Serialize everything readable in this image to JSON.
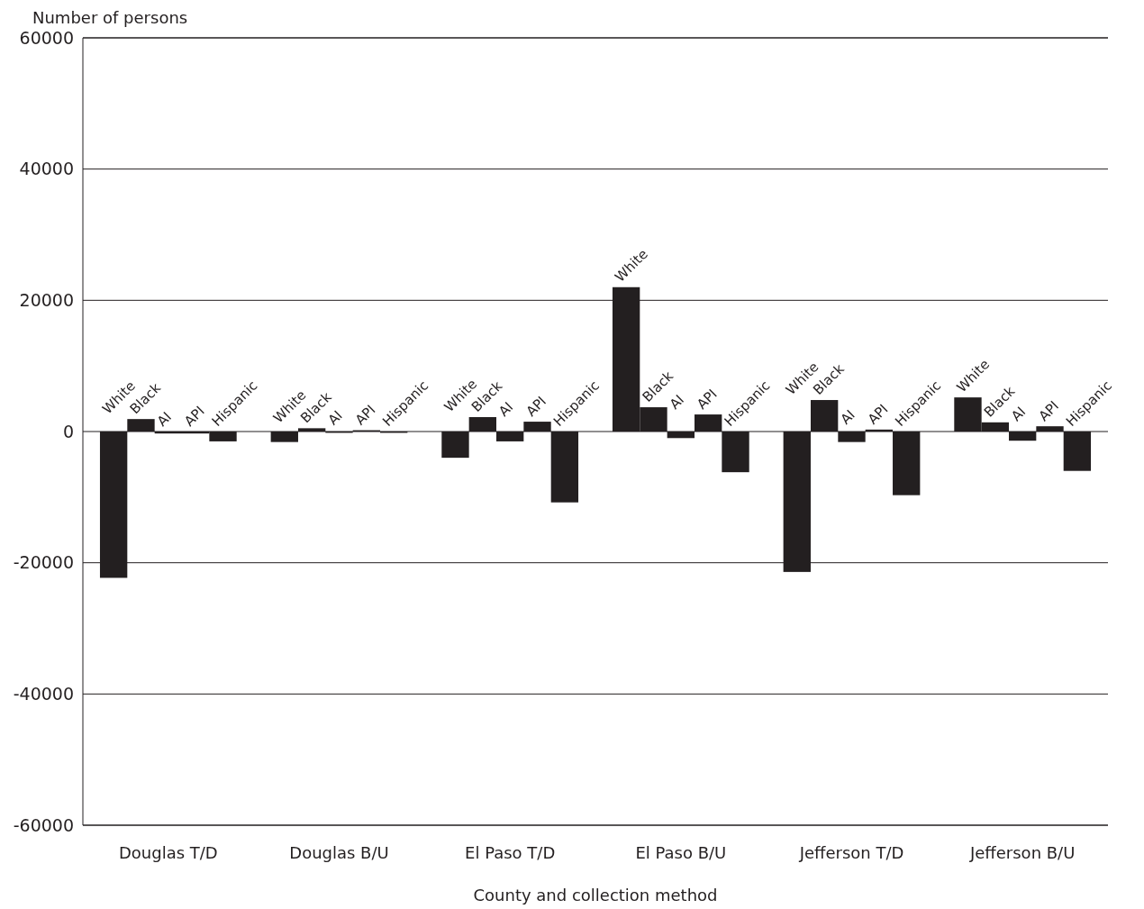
{
  "chart_data": {
    "type": "bar",
    "xlabel": "County and collection method",
    "ylabel": "Number of persons",
    "categories": [
      "Douglas T/D",
      "Douglas B/U",
      "El Paso T/D",
      "El Paso B/U",
      "Jefferson T/D",
      "Jefferson B/U"
    ],
    "series": [
      {
        "name": "White",
        "color": "#231f20",
        "values": [
          -22300,
          -1600,
          -4000,
          22000,
          -21400,
          5200
        ]
      },
      {
        "name": "Black",
        "color": "#231f20",
        "values": [
          1900,
          500,
          2200,
          3700,
          4800,
          1400
        ]
      },
      {
        "name": "AI",
        "color": "#231f20",
        "values": [
          -300,
          -200,
          -1500,
          -1000,
          -1600,
          -1400
        ]
      },
      {
        "name": "API",
        "color": "#231f20",
        "values": [
          -300,
          200,
          1500,
          2600,
          300,
          800
        ]
      },
      {
        "name": "Hispanic",
        "color": "#231f20",
        "values": [
          -1500,
          -200,
          -10800,
          -6200,
          -9700,
          -6000
        ]
      }
    ],
    "ylim": [
      -60000,
      60000
    ],
    "yticks": [
      -60000,
      -40000,
      -20000,
      0,
      20000,
      40000,
      60000
    ],
    "grid": "y"
  }
}
